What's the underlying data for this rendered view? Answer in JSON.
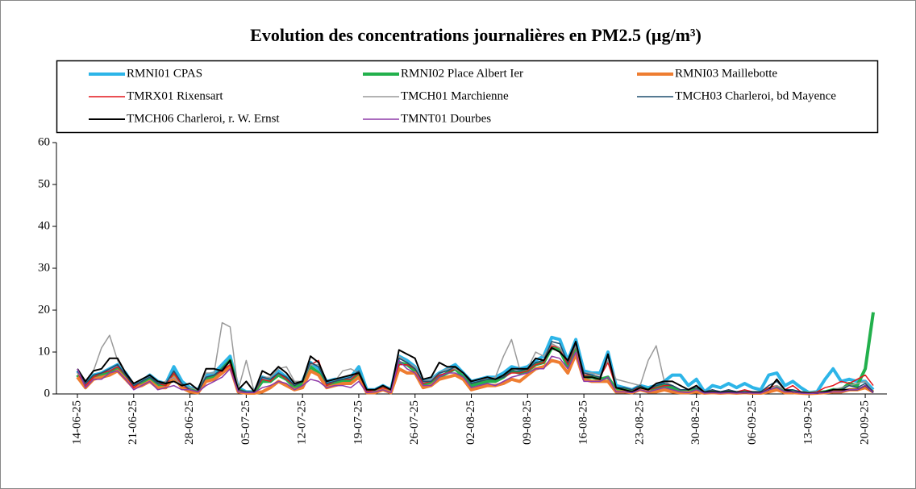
{
  "chart_data": {
    "type": "line",
    "title": "Evolution des concentrations journalières en PM2.5 (µg/m³)",
    "categories": [
      "14-06-25",
      null,
      null,
      null,
      null,
      null,
      null,
      "21-06-25",
      null,
      null,
      null,
      null,
      null,
      null,
      "28-06-25",
      null,
      null,
      null,
      null,
      null,
      null,
      "05-07-25",
      null,
      null,
      null,
      null,
      null,
      null,
      "12-07-25",
      null,
      null,
      null,
      null,
      null,
      null,
      "19-07-25",
      null,
      null,
      null,
      null,
      null,
      null,
      "26-07-25",
      null,
      null,
      null,
      null,
      null,
      null,
      "02-08-25",
      null,
      null,
      null,
      null,
      null,
      null,
      "09-08-25",
      null,
      null,
      null,
      null,
      null,
      null,
      "16-08-25",
      null,
      null,
      null,
      null,
      null,
      null,
      "23-08-25",
      null,
      null,
      null,
      null,
      null,
      null,
      "30-08-25",
      null,
      null,
      null,
      null,
      null,
      null,
      "06-09-25",
      null,
      null,
      null,
      null,
      null,
      null,
      "13-09-25",
      null,
      null,
      null,
      null,
      null,
      null,
      "20-09-25",
      null
    ],
    "ylim": [
      0,
      60
    ],
    "yticks": [
      0,
      10,
      20,
      30,
      40,
      50,
      60
    ],
    "grid": false,
    "series": [
      {
        "name": "RMNI01 CPAS",
        "color": "#2db5e8",
        "values": [
          5.5,
          2.5,
          4.5,
          5,
          6,
          7,
          5,
          2,
          3,
          4.5,
          3,
          2.5,
          6.5,
          3,
          1.5,
          1,
          4.5,
          5,
          7,
          9,
          1.5,
          0.5,
          0.5,
          4,
          3.5,
          5.5,
          4,
          2,
          3,
          7.5,
          6,
          3,
          3.5,
          3.5,
          4,
          6.5,
          1,
          1,
          2,
          1,
          9,
          8,
          6.5,
          3,
          3.5,
          5,
          6,
          7,
          5,
          3,
          3.5,
          4,
          4,
          5,
          6.5,
          6,
          6.5,
          8,
          9,
          13.5,
          13,
          8,
          13,
          5.5,
          5,
          5,
          10,
          2,
          1.5,
          1,
          2,
          1.5,
          2,
          3,
          4.5,
          4.5,
          2,
          3.5,
          0.5,
          2,
          1.5,
          2.5,
          1.5,
          2.5,
          1.5,
          1,
          4.5,
          5,
          2,
          3,
          1.5,
          0.3,
          0.5,
          3.5,
          6,
          3,
          3.5,
          3,
          3,
          1
        ]
      },
      {
        "name": "RMNI02 Place Albert Ier",
        "color": "#22b04c",
        "values": [
          4.5,
          1.5,
          4,
          4.5,
          5,
          6,
          4,
          1.5,
          2.5,
          3.5,
          2,
          2,
          5,
          2,
          1,
          0.5,
          3.5,
          4,
          6,
          8,
          1,
          0.3,
          0.3,
          3,
          3,
          4.5,
          3.5,
          1.5,
          2.5,
          6.5,
          5,
          2,
          2.5,
          3,
          3,
          5,
          0.5,
          0.5,
          1.5,
          0.5,
          7.5,
          7,
          5.5,
          2,
          2.5,
          4,
          5,
          6,
          4,
          2,
          2.5,
          3,
          3,
          4,
          5.5,
          5,
          5.5,
          7,
          7.5,
          11,
          10.5,
          6.5,
          11,
          4,
          4,
          3.5,
          4,
          1,
          1,
          0.5,
          1.5,
          1,
          1.5,
          2,
          1.5,
          0.5,
          0.5,
          1,
          0.3,
          0.5,
          0.3,
          0.5,
          0.3,
          0.5,
          0.3,
          0.3,
          1,
          1.5,
          0.5,
          0.5,
          0.3,
          0.2,
          0.3,
          0.5,
          1,
          1,
          2.5,
          2,
          6,
          19.5
        ]
      },
      {
        "name": "RMNI03 Maillebotte",
        "color": "#ee7d31",
        "values": [
          4,
          1.5,
          3.5,
          4,
          4.5,
          5.5,
          3.5,
          1.5,
          2,
          3,
          1.5,
          1.5,
          4,
          1.5,
          0.5,
          0.3,
          3,
          3.5,
          5,
          6.5,
          0.5,
          0.2,
          0.2,
          0.5,
          1.5,
          3,
          2,
          1,
          1.5,
          5.5,
          4.5,
          1.5,
          2,
          2.5,
          2.5,
          4,
          0.3,
          0.3,
          1,
          0.3,
          6,
          5,
          5,
          1.5,
          2,
          3.5,
          4,
          4.5,
          3.5,
          1,
          1.5,
          2,
          2,
          2.5,
          3.5,
          3,
          4.5,
          6,
          6.5,
          8,
          7.5,
          5,
          9.5,
          3.5,
          3,
          3,
          3,
          0.5,
          0.5,
          0.3,
          1,
          0.5,
          0.5,
          1,
          0.5,
          0.3,
          0.3,
          0.5,
          0.2,
          0.3,
          0.2,
          0.3,
          0.2,
          0.3,
          0.2,
          0.2,
          0.5,
          1,
          0.3,
          0.3,
          0.2,
          0.1,
          0.2,
          0.3,
          0.5,
          0.5,
          1,
          1,
          1.5,
          0.5
        ]
      },
      {
        "name": "TMRX01 Rixensart",
        "color": "#e4161c",
        "values": [
          5,
          2,
          4,
          5,
          5.5,
          6.5,
          4.5,
          1.5,
          3,
          4,
          2.5,
          2,
          5,
          2,
          1,
          0.5,
          4,
          4.5,
          5.5,
          7,
          1,
          0.5,
          0.5,
          3.5,
          3,
          5,
          3.5,
          2,
          3,
          7,
          8,
          2,
          3,
          3.5,
          3.5,
          5,
          0.5,
          1,
          1.5,
          1,
          7,
          7,
          6,
          2.5,
          3,
          4.5,
          5,
          6,
          5,
          2.5,
          3,
          3.5,
          3.5,
          4,
          5,
          5,
          5.5,
          7,
          7.5,
          11.5,
          11,
          7,
          11.5,
          4.5,
          4.5,
          4,
          7.5,
          1.5,
          1.5,
          1,
          1.5,
          1,
          1.5,
          2,
          2,
          1,
          1,
          2,
          0.5,
          1,
          0.5,
          1,
          0.5,
          1,
          0.5,
          0.5,
          1.5,
          2,
          1,
          2,
          0.5,
          0.3,
          0.5,
          1.5,
          2,
          3,
          2.5,
          3.5,
          4.5,
          2
        ]
      },
      {
        "name": "TMCH01 Marchienne",
        "color": "#9a9a9a",
        "values": [
          5,
          3,
          5.5,
          11,
          14,
          8,
          5,
          2,
          3,
          4,
          2.5,
          3,
          4,
          2,
          1.5,
          1,
          5,
          5,
          17,
          16,
          1,
          8,
          0.5,
          4,
          4,
          6,
          6.5,
          3,
          3,
          7,
          7,
          2.5,
          3,
          5.5,
          6,
          5,
          1,
          1,
          2,
          1,
          9,
          7.5,
          6.5,
          3,
          3.5,
          5,
          6,
          6,
          5,
          3,
          3.5,
          3.5,
          4,
          9,
          13,
          6,
          6,
          10,
          9,
          12,
          11,
          8,
          11.5,
          5,
          5,
          4.5,
          8,
          3.5,
          3,
          2.5,
          2,
          8,
          11.5,
          3,
          2,
          1,
          1,
          1.5,
          0.5,
          0.5,
          0.5,
          0.5,
          0.5,
          0.5,
          0.5,
          0.5,
          1,
          2,
          1,
          0.5,
          0.3,
          0.3,
          0.3,
          0.5,
          1,
          1.5,
          2,
          2.5,
          3,
          0.5
        ]
      },
      {
        "name": "TMCH03 Charleroi, bd Mayence",
        "color": "#1f4e6e",
        "values": [
          5.5,
          2.5,
          4.5,
          5,
          6,
          7,
          4.5,
          2,
          3,
          4,
          2.5,
          2.5,
          5.5,
          2.5,
          1,
          0.5,
          4,
          4.5,
          6,
          8,
          1,
          0.5,
          0.5,
          4,
          3.5,
          5,
          4,
          2,
          3,
          7.5,
          6.5,
          2.5,
          3,
          3.5,
          4,
          5.5,
          1,
          1,
          2,
          1,
          8.5,
          7.5,
          6,
          3,
          3,
          5,
          5.5,
          6.5,
          5,
          2.5,
          3,
          3.5,
          3.5,
          4,
          5.5,
          5.5,
          6,
          7.5,
          8,
          12.5,
          12,
          7.5,
          12,
          5,
          4.5,
          4,
          9,
          1.5,
          1.5,
          1,
          2,
          1,
          2,
          2.5,
          2,
          1,
          1,
          1.5,
          0.5,
          1,
          0.5,
          1,
          0.5,
          0.5,
          0.5,
          0.5,
          2,
          3,
          1,
          1,
          0.5,
          0.2,
          0.3,
          0.5,
          1,
          1,
          2,
          1.5,
          2.5,
          0.5
        ]
      },
      {
        "name": "TMCH06 Charleroi, r. W. Ernst",
        "color": "#000000",
        "values": [
          6,
          3,
          5.5,
          6,
          8.5,
          8.5,
          5,
          2.5,
          3.5,
          4.5,
          3,
          2.5,
          3,
          2,
          2.5,
          1,
          6,
          6,
          5.5,
          8,
          1,
          3,
          0.5,
          5.5,
          4.5,
          6.5,
          5,
          2.5,
          3,
          9,
          7.5,
          3,
          3.5,
          4,
          4.5,
          5,
          1,
          1,
          2,
          1,
          10.5,
          9.5,
          8.5,
          3.5,
          4,
          7.5,
          6.5,
          6.5,
          5,
          3,
          3.5,
          4,
          3.5,
          4.5,
          6,
          6,
          6,
          8.5,
          8,
          11,
          10,
          8,
          12.5,
          4,
          4,
          3.5,
          9.5,
          1.5,
          1,
          0.5,
          1.5,
          1,
          2.5,
          3,
          3,
          2,
          1,
          2,
          0.3,
          0.5,
          0.3,
          0.5,
          0.3,
          0.3,
          0.3,
          0.3,
          1,
          3.5,
          1,
          0.5,
          0.3,
          0.2,
          0.2,
          0.5,
          1,
          1,
          1,
          1,
          2,
          0.3
        ]
      },
      {
        "name": "TMNT01 Dourbes",
        "color": "#8e3aa8",
        "values": [
          6,
          1.5,
          3.5,
          3.5,
          5,
          5.5,
          3.5,
          1,
          2,
          3,
          1,
          1.5,
          2,
          1,
          1,
          0.5,
          2,
          3,
          4,
          6,
          0.5,
          0.3,
          0.3,
          1.5,
          2,
          3,
          2.5,
          1,
          2,
          3.5,
          3,
          1.5,
          2,
          2,
          1.5,
          3,
          0.3,
          0.5,
          1,
          0.3,
          8,
          6,
          5,
          2,
          2,
          4,
          5,
          5,
          4,
          1.5,
          2,
          2.5,
          2,
          3,
          4,
          4.5,
          5,
          6,
          6,
          9,
          8.5,
          6,
          10,
          3,
          3,
          3,
          4,
          0.5,
          0.5,
          0.3,
          1,
          0.5,
          1,
          1.5,
          1,
          0.5,
          0.3,
          1,
          0.2,
          0.3,
          0.2,
          0.3,
          0.2,
          0.3,
          0.2,
          0.2,
          1,
          1.5,
          0.5,
          0.5,
          0.2,
          0.1,
          0.2,
          0.3,
          0.5,
          0.5,
          1,
          1,
          2,
          0.3
        ]
      }
    ]
  }
}
